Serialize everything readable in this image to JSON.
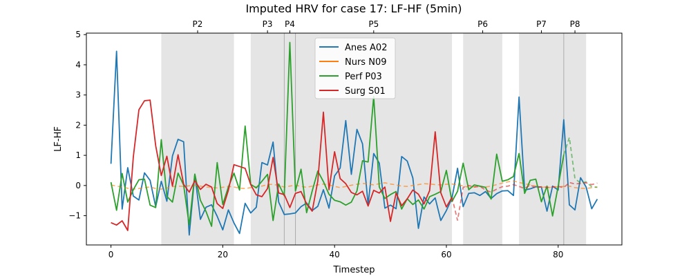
{
  "chart_data": {
    "type": "line",
    "title": "Imputed HRV for case 17: LF-HF (5min)",
    "xlabel": "Timestep",
    "ylabel": "LF-HF",
    "xlim": [
      -4.4,
      91.4
    ],
    "ylim": [
      -1.97,
      5.05
    ],
    "xticks": [
      0,
      20,
      40,
      60,
      80
    ],
    "yticks": [
      -1,
      0,
      1,
      2,
      3,
      4,
      5
    ],
    "grid": false,
    "legend_position": "top-center",
    "periods": [
      {
        "label": "P2",
        "start": 9,
        "end": 22
      },
      {
        "label": "P3",
        "start": 25,
        "end": 31
      },
      {
        "label": "P4",
        "start": 31,
        "end": 33
      },
      {
        "label": "P5",
        "start": 33,
        "end": 61
      },
      {
        "label": "P6",
        "start": 63,
        "end": 70
      },
      {
        "label": "P7",
        "start": 73,
        "end": 81
      },
      {
        "label": "P8",
        "start": 81,
        "end": 85
      }
    ],
    "period_color": "#d3d3d3",
    "series": [
      {
        "name": "Anes A02",
        "color": "#1f77b4",
        "values": [
          0.72,
          4.45,
          -0.78,
          0.59,
          -0.35,
          -0.48,
          0.42,
          0.17,
          -0.7,
          0.14,
          -0.52,
          0.98,
          1.53,
          1.45,
          -1.64,
          0.36,
          -1.12,
          -0.72,
          -0.64,
          -1.02,
          -1.47,
          -0.81,
          -1.24,
          -1.59,
          -0.59,
          -0.91,
          -0.72,
          0.76,
          0.68,
          1.44,
          -0.55,
          -0.96,
          -0.94,
          -0.91,
          -0.7,
          -0.58,
          -0.83,
          -0.69,
          -0.14,
          -0.75,
          0.32,
          0.58,
          2.15,
          0.37,
          1.86,
          1.38,
          -0.64,
          1.06,
          0.74,
          -0.75,
          -0.65,
          -0.77,
          0.96,
          0.81,
          0.25,
          -1.42,
          -0.38,
          -0.61,
          -0.41,
          -1.16,
          -0.83,
          -0.42,
          0.57,
          -0.7,
          -0.26,
          -0.24,
          -0.33,
          -0.2,
          -0.43,
          -0.27,
          -0.18,
          -0.17,
          -0.33,
          2.93,
          -0.15,
          -0.11,
          -0.04,
          -0.05,
          -0.85,
          -0.02,
          -0.15,
          2.18,
          -0.64,
          -0.81,
          0.26,
          -0.05,
          -0.77,
          -0.45
        ],
        "dashed_from": null
      },
      {
        "name": "Nurs N09",
        "color": "#ff7f0e",
        "values": [
          0.02,
          -0.02,
          -0.05,
          -0.09,
          -0.12,
          -0.1,
          -0.07,
          -0.05,
          -0.1,
          -0.12,
          -0.08,
          -0.04,
          -0.02,
          -0.03,
          -0.01,
          0.01,
          -0.02,
          -0.05,
          -0.07,
          -0.08,
          -0.06,
          -0.03,
          -0.05,
          -0.09,
          -0.1,
          -0.07,
          -0.04,
          -0.02,
          0.03,
          0.04,
          0.0,
          -0.05,
          -0.02,
          0.01,
          -0.03,
          -0.06,
          -0.02,
          0.02,
          0.05,
          0.02,
          -0.03,
          -0.07,
          -0.03,
          0.01,
          0.04,
          0.07,
          0.05,
          0.02,
          0.06,
          0.09,
          0.05,
          0.02,
          -0.02,
          -0.03,
          0.0,
          0.03,
          0.06,
          0.05,
          0.03,
          0.02,
          0.04,
          0.05,
          0.02,
          -0.01,
          -0.06,
          -0.04,
          -0.03,
          -0.05,
          -0.02,
          0.03,
          0.08,
          0.12,
          0.15,
          0.1,
          0.06,
          0.02,
          -0.02,
          -0.05,
          -0.07,
          -0.06,
          -0.04,
          -0.03,
          -0.02,
          -0.07,
          -0.09,
          -0.1,
          -0.07,
          -0.05
        ],
        "dashed_from": 0
      },
      {
        "name": "Perf P03",
        "color": "#2ca02c",
        "values": [
          0.11,
          -0.82,
          0.4,
          -0.55,
          -0.14,
          0.19,
          0.21,
          -0.65,
          -0.73,
          1.52,
          -0.36,
          -0.55,
          0.41,
          0.01,
          -1.31,
          0.38,
          -0.49,
          -0.86,
          -1.35,
          0.76,
          -0.63,
          -0.05,
          0.41,
          -0.15,
          1.97,
          0.04,
          -0.08,
          0.14,
          0.37,
          -1.16,
          0.05,
          -0.34,
          4.74,
          -0.18,
          0.54,
          -0.9,
          -0.18,
          0.48,
          0.13,
          -0.29,
          -0.49,
          -0.54,
          -0.65,
          -0.55,
          -0.18,
          0.82,
          0.78,
          2.95,
          -0.05,
          -0.43,
          -0.3,
          -0.2,
          -0.78,
          -0.44,
          -0.63,
          -0.48,
          -0.78,
          -0.37,
          -0.29,
          -0.2,
          0.5,
          -0.53,
          -0.19,
          0.74,
          -0.14,
          0.02,
          -0.02,
          -0.06,
          -0.45,
          1.04,
          0.14,
          0.19,
          0.3,
          1.06,
          -0.26,
          0.17,
          0.21,
          -0.54,
          -0.02,
          -1.01,
          -0.02,
          1.02,
          1.59,
          0.23,
          0.08,
          0.12,
          -0.04,
          -0.06
        ],
        "dashed_from": 81
      },
      {
        "name": "Surg S01",
        "color": "#d62728",
        "values": [
          -1.23,
          -1.31,
          -1.17,
          -1.49,
          0.95,
          2.51,
          2.81,
          2.83,
          1.32,
          0.33,
          0.97,
          -0.02,
          1.02,
          0.04,
          -0.22,
          0.16,
          -0.13,
          0.04,
          -0.05,
          -0.6,
          -0.76,
          -0.16,
          0.69,
          0.63,
          0.57,
          0.03,
          -0.31,
          -0.37,
          -0.1,
          0.93,
          -0.25,
          -0.3,
          -0.73,
          -0.26,
          -0.2,
          -0.61,
          -0.85,
          0.15,
          2.43,
          -0.14,
          1.12,
          0.23,
          0.06,
          -0.23,
          -0.31,
          -0.19,
          -0.68,
          -0.16,
          -0.25,
          -0.05,
          -1.19,
          -0.25,
          -0.67,
          -0.44,
          -0.15,
          -0.29,
          -0.61,
          -0.17,
          1.78,
          -0.24,
          -0.71,
          -0.39,
          -1.16,
          -0.06,
          0.0,
          -0.05,
          -0.03,
          -0.15,
          -0.22,
          -0.12,
          -0.04,
          -0.02,
          0.03,
          -0.03,
          -0.1,
          0.02,
          -0.08,
          -0.04,
          -0.06,
          -0.05,
          -0.03,
          -0.07,
          0.1,
          0.05,
          0.07,
          0.09,
          0.03,
          0.08
        ],
        "dashed_from": 61
      }
    ]
  }
}
